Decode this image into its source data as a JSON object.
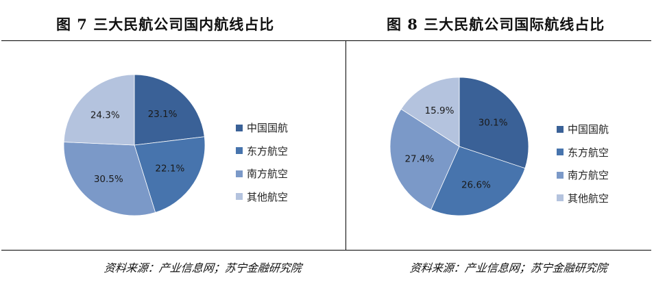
{
  "charts": [
    {
      "title": "图 7  三大民航公司国内航线占比",
      "source": "资料来源：产业信息网；苏宁金融研究院",
      "legend": [
        "中国国航",
        "东方航空",
        "南方航空",
        "其他航空"
      ]
    },
    {
      "title": "图 8  三大民航公司国际航线占比",
      "source": "资料来源：产业信息网；苏宁金融研究院",
      "legend": [
        "中国国航",
        "东方航空",
        "南方航空",
        "其他航空"
      ]
    }
  ],
  "colors": {
    "中国国航": "#3a6197",
    "东方航空": "#4774ad",
    "南方航空": "#7b99c8",
    "其他航空": "#b4c3de"
  },
  "chart_data": [
    {
      "type": "pie",
      "title": "图 7 三大民航公司国内航线占比",
      "categories": [
        "中国国航",
        "东方航空",
        "南方航空",
        "其他航空"
      ],
      "values": [
        23.1,
        22.1,
        30.5,
        24.3
      ],
      "labels": [
        "23.1%",
        "22.1%",
        "30.5%",
        "24.3%"
      ],
      "start_angle": "12 o'clock, clockwise",
      "legend_position": "right",
      "source": "资料来源：产业信息网；苏宁金融研究院"
    },
    {
      "type": "pie",
      "title": "图 8 三大民航公司国际航线占比",
      "categories": [
        "中国国航",
        "东方航空",
        "南方航空",
        "其他航空"
      ],
      "values": [
        30.1,
        26.6,
        27.4,
        15.9
      ],
      "labels": [
        "30.1%",
        "26.6%",
        "27.4%",
        "15.9%"
      ],
      "start_angle": "12 o'clock, clockwise",
      "legend_position": "right",
      "source": "资料来源：产业信息网；苏宁金融研究院"
    }
  ]
}
